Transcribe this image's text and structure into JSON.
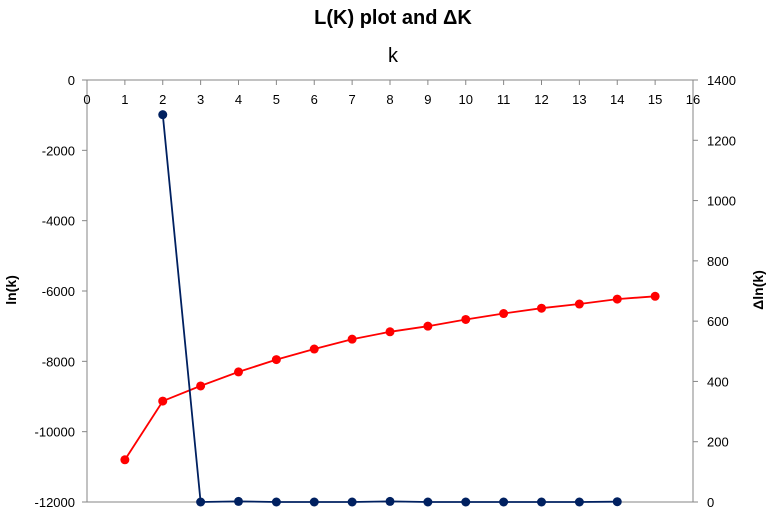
{
  "chart_data": {
    "type": "line",
    "title": "L(K) plot and ΔK",
    "xlabel": "k",
    "ylabel": "ln(k)",
    "y2label": "Δln(k)",
    "xlim": [
      0,
      16
    ],
    "ylim": [
      -12000,
      0
    ],
    "y2lim": [
      0,
      1400
    ],
    "x_ticks": [
      "0",
      "1",
      "2",
      "3",
      "4",
      "5",
      "6",
      "7",
      "8",
      "9",
      "10",
      "11",
      "12",
      "13",
      "14",
      "15",
      "16"
    ],
    "y_ticks": [
      "0",
      "-2000",
      "-4000",
      "-6000",
      "-8000",
      "-10000",
      "-12000"
    ],
    "y2_ticks": [
      "1400",
      "1200",
      "1000",
      "800",
      "600",
      "400",
      "200",
      "0"
    ],
    "grid": false,
    "legend": "none",
    "series": [
      {
        "axis": "left",
        "color": "#ff0000",
        "points": [
          {
            "x": 1,
            "y": -10800
          },
          {
            "x": 2,
            "y": -9130
          },
          {
            "x": 3,
            "y": -8700
          },
          {
            "x": 4,
            "y": -8300
          },
          {
            "x": 5,
            "y": -7950
          },
          {
            "x": 6,
            "y": -7650
          },
          {
            "x": 7,
            "y": -7370
          },
          {
            "x": 8,
            "y": -7160
          },
          {
            "x": 9,
            "y": -7000
          },
          {
            "x": 10,
            "y": -6810
          },
          {
            "x": 11,
            "y": -6640
          },
          {
            "x": 12,
            "y": -6490
          },
          {
            "x": 13,
            "y": -6370
          },
          {
            "x": 14,
            "y": -6230
          },
          {
            "x": 15,
            "y": -6150
          }
        ]
      },
      {
        "axis": "right",
        "color": "#002060",
        "points": [
          {
            "x": 2,
            "y": 1285
          },
          {
            "x": 3,
            "y": 0
          },
          {
            "x": 4,
            "y": 2
          },
          {
            "x": 5,
            "y": 0
          },
          {
            "x": 6,
            "y": 0
          },
          {
            "x": 7,
            "y": 0
          },
          {
            "x": 8,
            "y": 2
          },
          {
            "x": 9,
            "y": 0
          },
          {
            "x": 10,
            "y": 0
          },
          {
            "x": 11,
            "y": 0
          },
          {
            "x": 12,
            "y": 0
          },
          {
            "x": 13,
            "y": 0
          },
          {
            "x": 14,
            "y": 1
          }
        ]
      }
    ]
  }
}
